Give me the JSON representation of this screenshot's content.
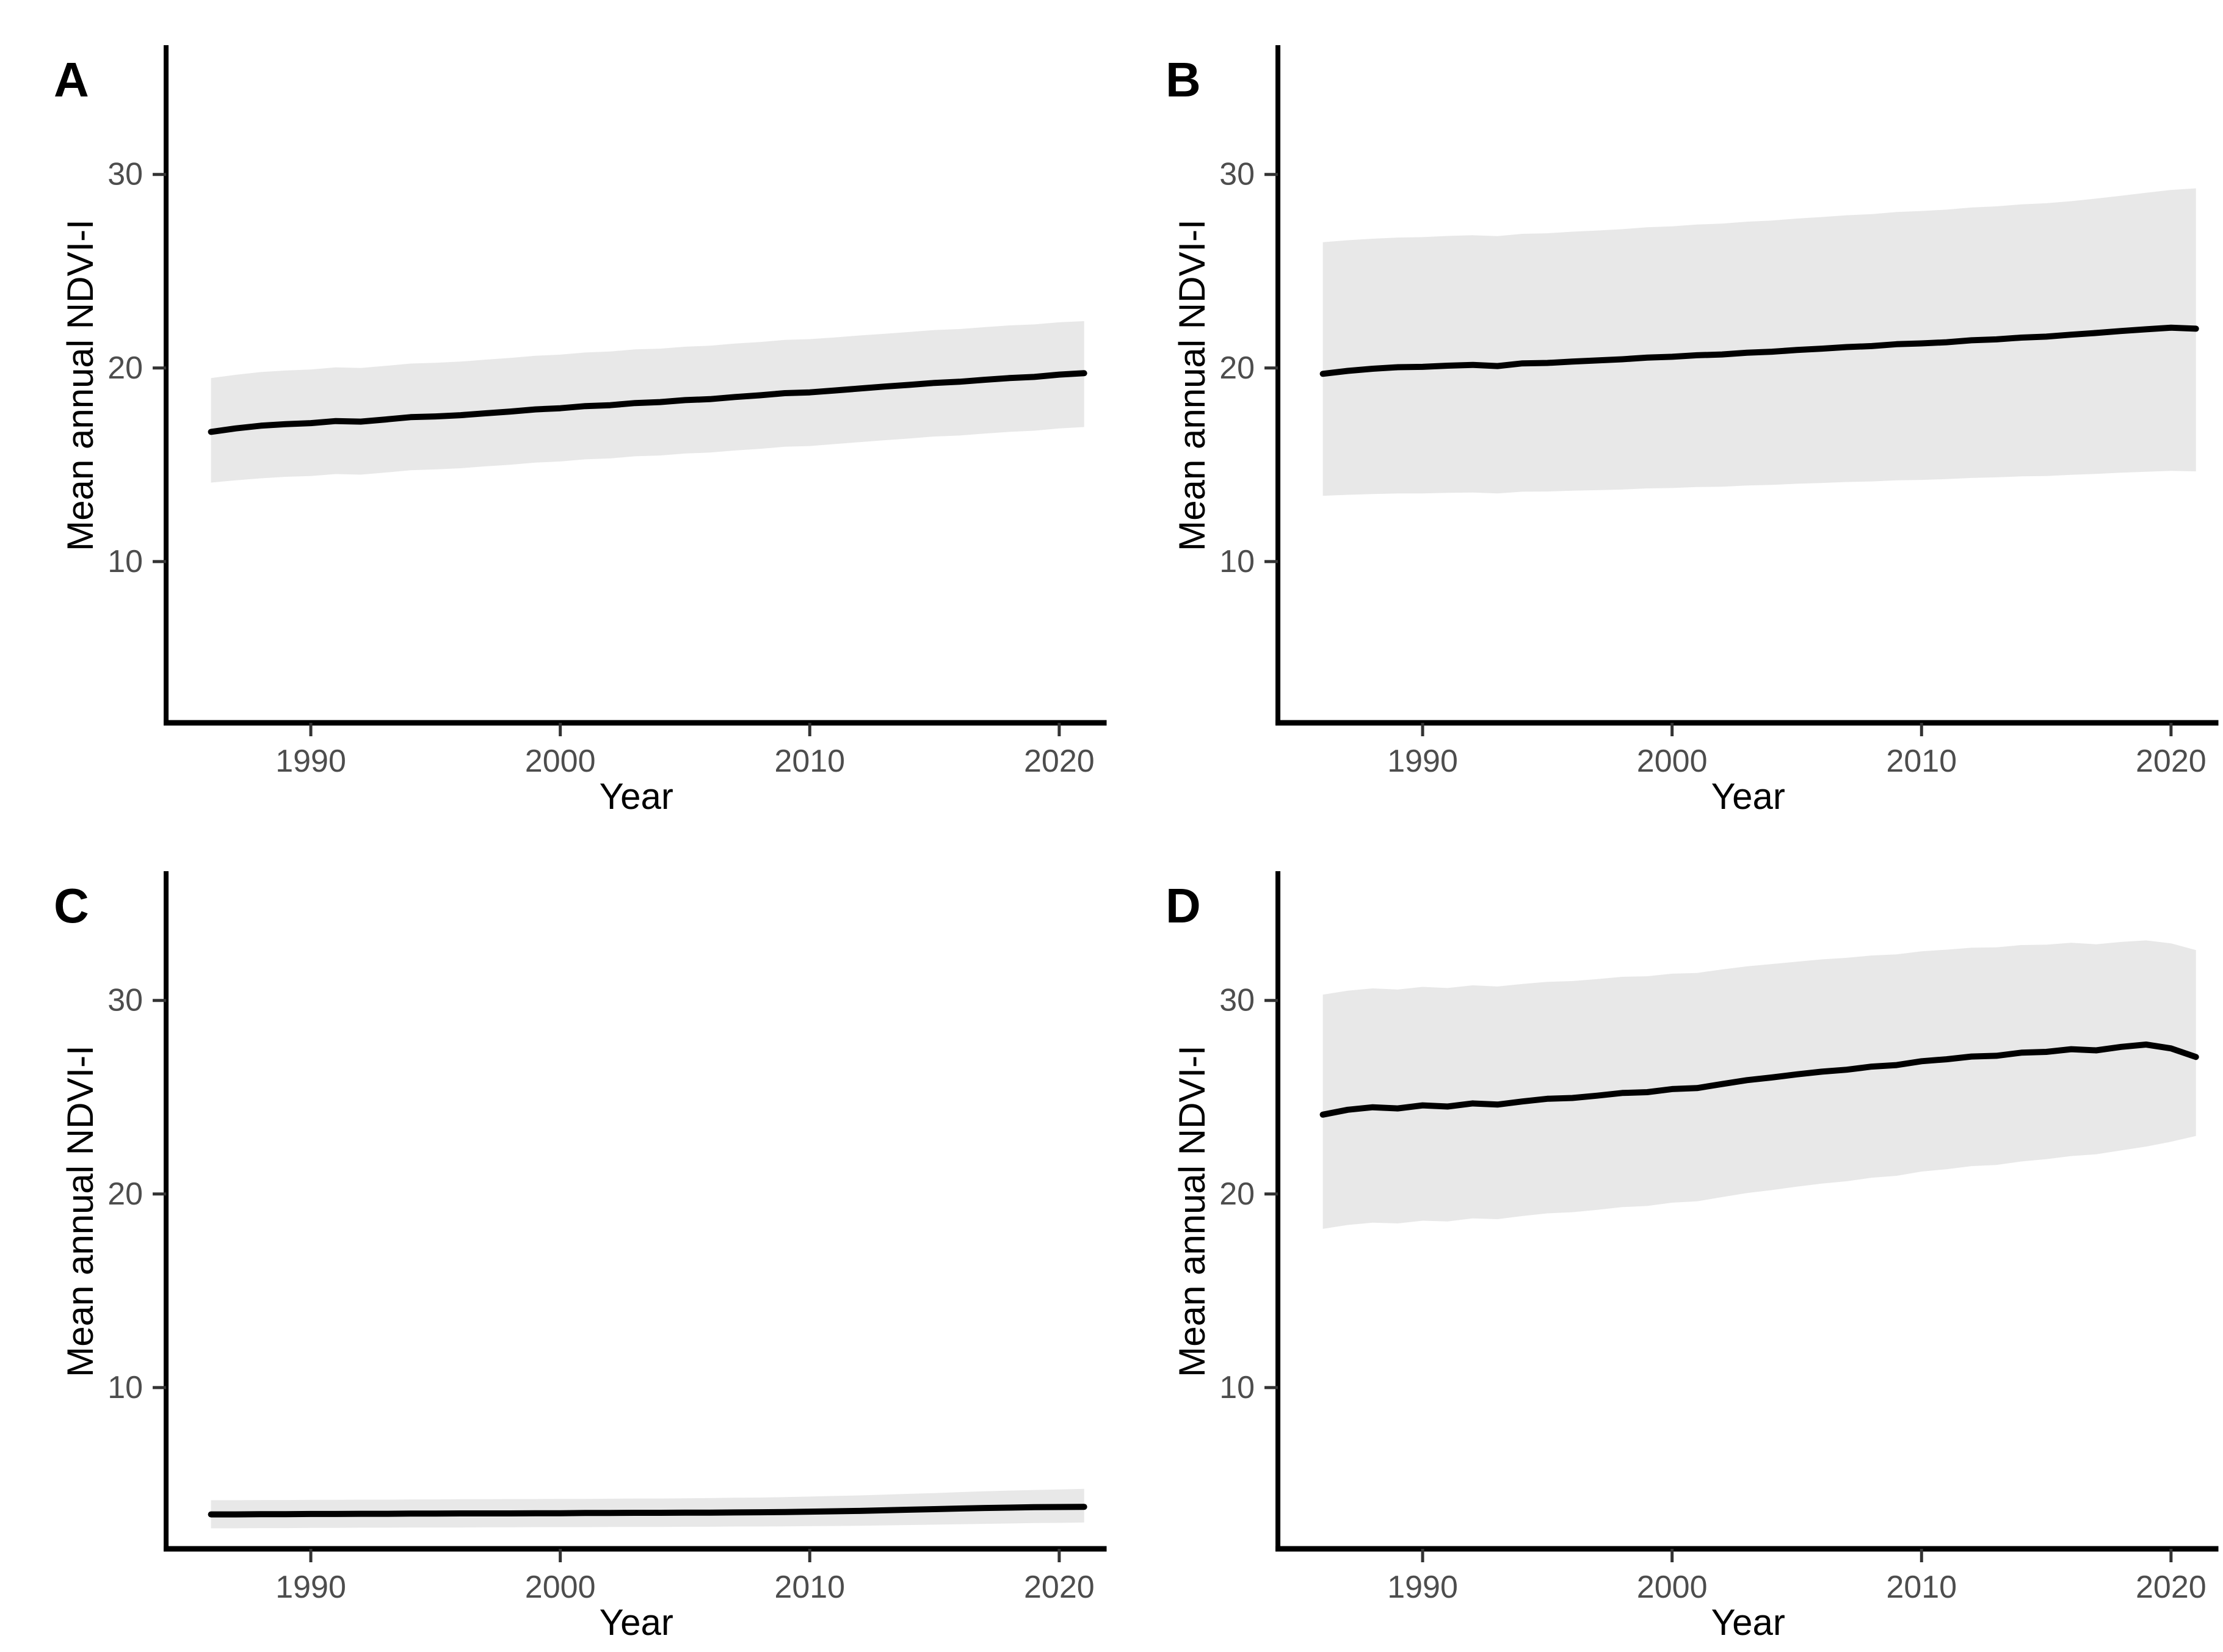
{
  "figure": {
    "background": "#ffffff",
    "colors": {
      "trend_line": "#000000",
      "ribbon": "#e8e8e8",
      "axis_line": "#000000",
      "tick_mark": "#333333",
      "tick_label": "#4d4d4d",
      "axis_title": "#000000",
      "panel_letter": "#000000"
    },
    "x_axis_title": "Year",
    "y_axis_title": "Mean annual NDVI-I"
  },
  "chart_data": [
    {
      "type": "line",
      "panel_letter": "A",
      "xlabel": "Year",
      "ylabel": "Mean annual NDVI-I",
      "x_ticks": [
        1990,
        2000,
        2010,
        2020
      ],
      "y_ticks": [
        10,
        20,
        30
      ],
      "xlim": [
        1984.2,
        2021.9
      ],
      "ylim": [
        1.67,
        36.55
      ],
      "grid": false,
      "legend": false,
      "years": [
        1986,
        1987,
        1988,
        1989,
        1990,
        1991,
        1992,
        1993,
        1994,
        1995,
        1996,
        1997,
        1998,
        1999,
        2000,
        2001,
        2002,
        2003,
        2004,
        2005,
        2006,
        2007,
        2008,
        2009,
        2010,
        2011,
        2012,
        2013,
        2014,
        2015,
        2016,
        2017,
        2018,
        2019,
        2020,
        2021
      ],
      "series": [
        {
          "name": "mean_ndvi",
          "values": [
            16.7,
            16.88,
            17.02,
            17.1,
            17.15,
            17.26,
            17.23,
            17.34,
            17.46,
            17.5,
            17.56,
            17.66,
            17.75,
            17.86,
            17.92,
            18.03,
            18.08,
            18.19,
            18.24,
            18.34,
            18.39,
            18.5,
            18.59,
            18.7,
            18.74,
            18.84,
            18.94,
            19.04,
            19.13,
            19.23,
            19.29,
            19.39,
            19.48,
            19.54,
            19.66,
            19.73
          ]
        },
        {
          "name": "ci_upper",
          "values": [
            19.48,
            19.65,
            19.79,
            19.87,
            19.92,
            20.03,
            20.0,
            20.11,
            20.23,
            20.27,
            20.33,
            20.43,
            20.52,
            20.63,
            20.69,
            20.8,
            20.85,
            20.96,
            21.0,
            21.1,
            21.15,
            21.26,
            21.34,
            21.45,
            21.49,
            21.58,
            21.68,
            21.77,
            21.86,
            21.96,
            22.01,
            22.11,
            22.2,
            22.25,
            22.36,
            22.42
          ]
        },
        {
          "name": "ci_lower",
          "values": [
            14.08,
            14.2,
            14.3,
            14.38,
            14.42,
            14.52,
            14.49,
            14.6,
            14.72,
            14.76,
            14.82,
            14.92,
            15.0,
            15.11,
            15.17,
            15.28,
            15.33,
            15.44,
            15.48,
            15.58,
            15.63,
            15.74,
            15.82,
            15.93,
            15.97,
            16.07,
            16.17,
            16.27,
            16.36,
            16.46,
            16.51,
            16.61,
            16.7,
            16.76,
            16.88,
            16.95
          ]
        }
      ]
    },
    {
      "type": "line",
      "panel_letter": "B",
      "xlabel": "Year",
      "ylabel": "Mean annual NDVI-I",
      "x_ticks": [
        1990,
        2000,
        2010,
        2020
      ],
      "y_ticks": [
        10,
        20,
        30
      ],
      "xlim": [
        1984.2,
        2021.9
      ],
      "ylim": [
        1.67,
        36.55
      ],
      "grid": false,
      "legend": false,
      "years": [
        1986,
        1987,
        1988,
        1989,
        1990,
        1991,
        1992,
        1993,
        1994,
        1995,
        1996,
        1997,
        1998,
        1999,
        2000,
        2001,
        2002,
        2003,
        2004,
        2005,
        2006,
        2007,
        2008,
        2009,
        2010,
        2011,
        2012,
        2013,
        2014,
        2015,
        2016,
        2017,
        2018,
        2019,
        2020,
        2021
      ],
      "series": [
        {
          "name": "mean_ndvi",
          "values": [
            19.7,
            19.85,
            19.96,
            20.04,
            20.06,
            20.12,
            20.16,
            20.1,
            20.24,
            20.26,
            20.33,
            20.39,
            20.45,
            20.54,
            20.58,
            20.66,
            20.7,
            20.79,
            20.84,
            20.93,
            21.0,
            21.08,
            21.13,
            21.23,
            21.27,
            21.33,
            21.43,
            21.48,
            21.57,
            21.62,
            21.72,
            21.81,
            21.91,
            22.0,
            22.08,
            22.03
          ]
        },
        {
          "name": "ci_upper",
          "values": [
            26.5,
            26.6,
            26.68,
            26.74,
            26.76,
            26.82,
            26.86,
            26.81,
            26.93,
            26.96,
            27.04,
            27.1,
            27.17,
            27.27,
            27.32,
            27.41,
            27.46,
            27.56,
            27.62,
            27.72,
            27.8,
            27.89,
            27.95,
            28.06,
            28.11,
            28.18,
            28.29,
            28.35,
            28.45,
            28.51,
            28.62,
            28.75,
            28.9,
            29.05,
            29.2,
            29.28
          ]
        },
        {
          "name": "ci_lower",
          "values": [
            13.4,
            13.45,
            13.49,
            13.52,
            13.52,
            13.55,
            13.57,
            13.52,
            13.61,
            13.62,
            13.66,
            13.69,
            13.72,
            13.78,
            13.8,
            13.85,
            13.87,
            13.93,
            13.96,
            14.02,
            14.06,
            14.11,
            14.14,
            14.2,
            14.22,
            14.26,
            14.32,
            14.35,
            14.4,
            14.42,
            14.48,
            14.53,
            14.59,
            14.64,
            14.69,
            14.66
          ]
        }
      ]
    },
    {
      "type": "line",
      "panel_letter": "C",
      "xlabel": "Year",
      "ylabel": "Mean annual NDVI-I",
      "x_ticks": [
        1990,
        2000,
        2010,
        2020
      ],
      "y_ticks": [
        10,
        20,
        30
      ],
      "xlim": [
        1984.2,
        2021.9
      ],
      "ylim": [
        1.67,
        36.55
      ],
      "grid": false,
      "legend": false,
      "years": [
        1986,
        1987,
        1988,
        1989,
        1990,
        1991,
        1992,
        1993,
        1994,
        1995,
        1996,
        1997,
        1998,
        1999,
        2000,
        2001,
        2002,
        2003,
        2004,
        2005,
        2006,
        2007,
        2008,
        2009,
        2010,
        2011,
        2012,
        2013,
        2014,
        2015,
        2016,
        2017,
        2018,
        2019,
        2020,
        2021
      ],
      "series": [
        {
          "name": "mean_ndvi",
          "values": [
            3.45,
            3.45,
            3.46,
            3.46,
            3.47,
            3.47,
            3.48,
            3.48,
            3.49,
            3.49,
            3.5,
            3.5,
            3.5,
            3.51,
            3.51,
            3.52,
            3.52,
            3.53,
            3.53,
            3.54,
            3.54,
            3.55,
            3.56,
            3.57,
            3.59,
            3.61,
            3.63,
            3.66,
            3.69,
            3.72,
            3.75,
            3.78,
            3.8,
            3.82,
            3.83,
            3.84
          ]
        },
        {
          "name": "ci_upper",
          "values": [
            4.18,
            4.18,
            4.19,
            4.19,
            4.2,
            4.2,
            4.21,
            4.21,
            4.22,
            4.22,
            4.23,
            4.23,
            4.24,
            4.24,
            4.25,
            4.25,
            4.26,
            4.27,
            4.27,
            4.28,
            4.29,
            4.31,
            4.32,
            4.34,
            4.37,
            4.4,
            4.43,
            4.47,
            4.51,
            4.55,
            4.6,
            4.64,
            4.68,
            4.71,
            4.74,
            4.77
          ]
        },
        {
          "name": "ci_lower",
          "values": [
            2.73,
            2.73,
            2.74,
            2.74,
            2.75,
            2.75,
            2.76,
            2.76,
            2.77,
            2.77,
            2.77,
            2.78,
            2.78,
            2.79,
            2.79,
            2.79,
            2.8,
            2.8,
            2.8,
            2.81,
            2.81,
            2.82,
            2.82,
            2.83,
            2.84,
            2.85,
            2.86,
            2.88,
            2.9,
            2.92,
            2.94,
            2.96,
            2.98,
            3.0,
            3.01,
            3.03
          ]
        }
      ]
    },
    {
      "type": "line",
      "panel_letter": "D",
      "xlabel": "Year",
      "ylabel": "Mean annual NDVI-I",
      "x_ticks": [
        1990,
        2000,
        2010,
        2020
      ],
      "y_ticks": [
        10,
        20,
        30
      ],
      "xlim": [
        1984.2,
        2021.9
      ],
      "ylim": [
        1.67,
        36.55
      ],
      "grid": false,
      "legend": false,
      "years": [
        1986,
        1987,
        1988,
        1989,
        1990,
        1991,
        1992,
        1993,
        1994,
        1995,
        1996,
        1997,
        1998,
        1999,
        2000,
        2001,
        2002,
        2003,
        2004,
        2005,
        2006,
        2007,
        2008,
        2009,
        2010,
        2011,
        2012,
        2013,
        2014,
        2015,
        2016,
        2017,
        2018,
        2019,
        2020,
        2021
      ],
      "series": [
        {
          "name": "mean_ndvi",
          "values": [
            24.1,
            24.35,
            24.48,
            24.42,
            24.58,
            24.52,
            24.68,
            24.62,
            24.78,
            24.92,
            24.96,
            25.08,
            25.22,
            25.26,
            25.42,
            25.47,
            25.68,
            25.88,
            26.02,
            26.18,
            26.32,
            26.42,
            26.58,
            26.66,
            26.86,
            26.96,
            27.1,
            27.14,
            27.3,
            27.34,
            27.48,
            27.42,
            27.6,
            27.72,
            27.52,
            27.08
          ]
        },
        {
          "name": "ci_upper",
          "values": [
            30.3,
            30.5,
            30.62,
            30.56,
            30.7,
            30.64,
            30.78,
            30.72,
            30.85,
            30.96,
            31.0,
            31.1,
            31.22,
            31.25,
            31.38,
            31.42,
            31.6,
            31.76,
            31.88,
            32.0,
            32.12,
            32.2,
            32.32,
            32.38,
            32.54,
            32.62,
            32.72,
            32.74,
            32.86,
            32.88,
            32.98,
            32.9,
            33.02,
            33.1,
            32.95,
            32.6
          ]
        },
        {
          "name": "ci_lower",
          "values": [
            18.2,
            18.4,
            18.52,
            18.48,
            18.62,
            18.58,
            18.74,
            18.7,
            18.86,
            19.0,
            19.06,
            19.18,
            19.32,
            19.38,
            19.55,
            19.62,
            19.84,
            20.05,
            20.2,
            20.38,
            20.54,
            20.66,
            20.84,
            20.94,
            21.16,
            21.28,
            21.44,
            21.5,
            21.68,
            21.8,
            21.96,
            22.05,
            22.25,
            22.45,
            22.7,
            23.0
          ]
        }
      ]
    }
  ]
}
